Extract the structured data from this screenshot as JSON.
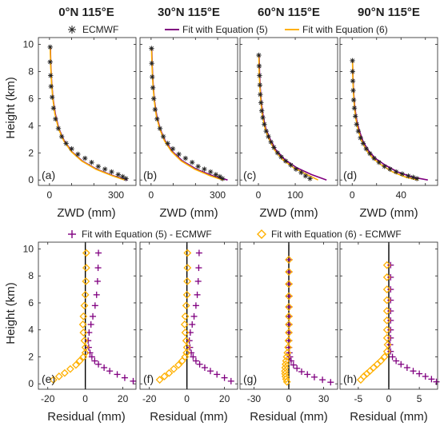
{
  "colors": {
    "ecmwf": "#222222",
    "eq5": "#800080",
    "eq6": "#FFB000",
    "zero_line": "#000000"
  },
  "legend_top": {
    "ecmwf": "ECMWF",
    "fit5": "Fit with Equation (5)",
    "fit6": "Fit with Equation (6)"
  },
  "legend_bottom": {
    "res5": "Fit with Equation (5) - ECMWF",
    "res6": "Fit with Equation (6) - ECMWF"
  },
  "chart_data": [
    {
      "id": "a",
      "type": "line",
      "title": "0°N 115°E",
      "panel_label": "(a)",
      "xlabel": "ZWD (mm)",
      "ylabel": "Height (km)",
      "xlim": [
        -50,
        390
      ],
      "xticks": [
        0,
        100,
        200,
        300
      ],
      "xticklabels": [
        "0",
        "",
        "",
        "300"
      ],
      "ylim": [
        -0.4,
        10.5
      ],
      "yticks": [
        0,
        2,
        4,
        6,
        8,
        10
      ],
      "ecmwf": {
        "x": [
          3,
          3,
          5,
          7,
          12,
          18,
          27,
          40,
          55,
          75,
          100,
          128,
          160,
          190,
          220,
          250,
          280,
          310,
          330,
          345
        ],
        "y": [
          9.8,
          8.7,
          7.7,
          6.9,
          6.1,
          5.3,
          4.5,
          3.8,
          3.2,
          2.7,
          2.3,
          1.9,
          1.6,
          1.3,
          1.0,
          0.8,
          0.6,
          0.4,
          0.25,
          0.1
        ]
      },
      "series": [
        {
          "key": "eq5",
          "x": [
            4,
            6,
            10,
            16,
            26,
            42,
            66,
            100,
            148,
            212,
            290,
            350
          ],
          "y": [
            9.8,
            8.5,
            7.2,
            6.0,
            4.9,
            3.8,
            2.9,
            2.1,
            1.4,
            0.8,
            0.3,
            0.0
          ]
        },
        {
          "key": "eq6",
          "x": [
            3,
            5,
            9,
            15,
            24,
            40,
            64,
            98,
            145,
            208,
            285,
            340
          ],
          "y": [
            9.8,
            8.5,
            7.2,
            6.0,
            4.9,
            3.8,
            2.9,
            2.1,
            1.4,
            0.8,
            0.3,
            0.0
          ]
        }
      ]
    },
    {
      "id": "b",
      "type": "line",
      "title": "30°N 115°E",
      "panel_label": "(b)",
      "xlabel": "ZWD (mm)",
      "ylabel": "",
      "xlim": [
        -50,
        390
      ],
      "xticks": [
        0,
        100,
        200,
        300
      ],
      "xticklabels": [
        "0",
        "",
        "",
        "300"
      ],
      "ylim": [
        -0.4,
        10.5
      ],
      "yticks": [
        0,
        2,
        4,
        6,
        8,
        10
      ],
      "ecmwf": {
        "x": [
          2,
          3,
          5,
          8,
          12,
          18,
          27,
          40,
          55,
          75,
          98,
          125,
          155,
          185,
          212,
          240,
          268,
          292,
          310,
          322
        ],
        "y": [
          9.7,
          8.6,
          7.6,
          6.8,
          6.0,
          5.2,
          4.5,
          3.8,
          3.2,
          2.7,
          2.3,
          1.9,
          1.6,
          1.3,
          1.0,
          0.8,
          0.6,
          0.4,
          0.25,
          0.1
        ]
      },
      "series": [
        {
          "key": "eq5",
          "x": [
            3,
            5,
            9,
            15,
            25,
            40,
            63,
            96,
            142,
            204,
            280,
            345
          ],
          "y": [
            9.7,
            8.4,
            7.1,
            5.9,
            4.8,
            3.8,
            2.9,
            2.1,
            1.4,
            0.8,
            0.3,
            0.0
          ]
        },
        {
          "key": "eq6",
          "x": [
            2,
            4,
            8,
            14,
            23,
            38,
            60,
            92,
            136,
            196,
            268,
            325
          ],
          "y": [
            9.7,
            8.4,
            7.1,
            5.9,
            4.8,
            3.8,
            2.9,
            2.1,
            1.4,
            0.8,
            0.3,
            0.0
          ]
        }
      ]
    },
    {
      "id": "c",
      "type": "line",
      "title": "60°N 115°E",
      "panel_label": "(c)",
      "xlabel": "ZWD (mm)",
      "ylabel": "",
      "xlim": [
        -50,
        215
      ],
      "xticks": [
        0,
        100
      ],
      "xticklabels": [
        "0",
        "100"
      ],
      "ylim": [
        -0.4,
        10.5
      ],
      "yticks": [
        0,
        2,
        4,
        6,
        8,
        10
      ],
      "ecmwf": {
        "x": [
          1,
          2,
          3,
          4,
          5,
          7,
          9,
          12,
          16,
          21,
          27,
          34,
          42,
          52,
          62,
          74,
          88,
          102,
          116,
          128,
          140
        ],
        "y": [
          9.2,
          8.4,
          7.7,
          7.0,
          6.3,
          5.7,
          5.1,
          4.6,
          4.1,
          3.6,
          3.2,
          2.8,
          2.4,
          2.0,
          1.7,
          1.4,
          1.1,
          0.8,
          0.55,
          0.3,
          0.1
        ]
      },
      "series": [
        {
          "key": "eq5",
          "x": [
            2,
            3,
            5,
            8,
            13,
            20,
            32,
            48,
            72,
            104,
            144,
            185
          ],
          "y": [
            9.2,
            8.0,
            6.8,
            5.7,
            4.7,
            3.8,
            3.0,
            2.2,
            1.5,
            0.9,
            0.4,
            0.0
          ]
        },
        {
          "key": "eq6",
          "x": [
            1,
            2,
            4,
            7,
            11,
            18,
            29,
            44,
            66,
            96,
            132,
            162
          ],
          "y": [
            9.2,
            8.0,
            6.8,
            5.7,
            4.7,
            3.8,
            3.0,
            2.2,
            1.5,
            0.9,
            0.4,
            0.0
          ]
        }
      ]
    },
    {
      "id": "d",
      "type": "line",
      "title": "90°N 115°E",
      "panel_label": "(d)",
      "xlabel": "ZWD (mm)",
      "ylabel": "",
      "xlim": [
        -10,
        70
      ],
      "xticks": [
        0,
        20,
        40,
        60
      ],
      "xticklabels": [
        "0",
        "",
        "40",
        ""
      ],
      "ylim": [
        -0.4,
        10.5
      ],
      "yticks": [
        0,
        2,
        4,
        6,
        8,
        10
      ],
      "ecmwf": {
        "x": [
          0.2,
          0.3,
          0.5,
          0.8,
          1.2,
          1.8,
          2.6,
          3.6,
          5,
          6.8,
          9,
          11.5,
          14.5,
          18,
          22,
          26.5,
          31,
          36,
          41,
          46,
          50,
          53
        ],
        "y": [
          8.8,
          8.0,
          7.3,
          6.6,
          5.9,
          5.3,
          4.7,
          4.1,
          3.6,
          3.1,
          2.7,
          2.3,
          1.95,
          1.6,
          1.3,
          1.0,
          0.8,
          0.6,
          0.45,
          0.3,
          0.2,
          0.1
        ]
      },
      "series": [
        {
          "key": "eq5",
          "x": [
            0.3,
            0.6,
            1.2,
            2.1,
            3.5,
            5.6,
            8.7,
            13,
            19,
            27,
            37,
            50,
            62
          ],
          "y": [
            8.8,
            7.6,
            6.4,
            5.4,
            4.5,
            3.7,
            2.9,
            2.2,
            1.6,
            1.1,
            0.6,
            0.2,
            0.0
          ]
        },
        {
          "key": "eq6",
          "x": [
            0.2,
            0.5,
            1.0,
            1.8,
            3.0,
            4.9,
            7.7,
            11.5,
            17,
            24,
            33,
            44,
            54
          ],
          "y": [
            8.8,
            7.6,
            6.4,
            5.4,
            4.5,
            3.7,
            2.9,
            2.2,
            1.6,
            1.1,
            0.6,
            0.2,
            0.0
          ]
        }
      ]
    },
    {
      "id": "e",
      "type": "scatter",
      "panel_label": "(e)",
      "xlabel": "Residual (mm)",
      "ylabel": "Height (km)",
      "xlim": [
        -25,
        27
      ],
      "xticks": [
        -20,
        0,
        20
      ],
      "xticklabels": [
        "-20",
        "0",
        "20"
      ],
      "ylim": [
        -0.4,
        10.5
      ],
      "yticks": [
        0,
        2,
        4,
        6,
        8,
        10
      ],
      "series": [
        {
          "key": "eq5",
          "marker": "plus",
          "x": [
            7,
            6.8,
            6.5,
            6.0,
            5.2,
            4.0,
            3.0,
            2.0,
            1.5,
            1.8,
            2.5,
            3.5,
            5.0,
            7.0,
            10.0,
            13.0,
            17.0,
            21.0,
            25.5
          ],
          "y": [
            9.7,
            8.6,
            7.6,
            6.6,
            5.8,
            5.0,
            4.4,
            3.8,
            3.2,
            2.7,
            2.3,
            2.0,
            1.7,
            1.45,
            1.2,
            0.95,
            0.7,
            0.45,
            0.2
          ]
        },
        {
          "key": "eq6",
          "marker": "diamond",
          "x": [
            0.5,
            0.5,
            0.3,
            0,
            -0.5,
            -1,
            -1.3,
            -1,
            -0.5,
            0,
            0,
            -1,
            -3,
            -5,
            -8,
            -11,
            -14,
            -17
          ],
          "y": [
            9.7,
            8.6,
            7.6,
            6.6,
            5.8,
            5.0,
            4.4,
            3.8,
            3.2,
            2.7,
            2.3,
            2.0,
            1.7,
            1.4,
            1.1,
            0.8,
            0.55,
            0.3
          ]
        }
      ]
    },
    {
      "id": "f",
      "type": "scatter",
      "panel_label": "(f)",
      "xlabel": "Residual (mm)",
      "ylabel": "",
      "xlim": [
        -25,
        27
      ],
      "xticks": [
        -20,
        0,
        20
      ],
      "xticklabels": [
        "-20",
        "0",
        "20"
      ],
      "ylim": [
        -0.4,
        10.5
      ],
      "yticks": [
        0,
        2,
        4,
        6,
        8,
        10
      ],
      "series": [
        {
          "key": "eq5",
          "marker": "plus",
          "x": [
            6.5,
            6.3,
            6.0,
            5.5,
            4.8,
            3.8,
            2.8,
            1.8,
            1.3,
            1.6,
            2.3,
            3.3,
            4.8,
            6.8,
            9.5,
            12.5,
            16.0,
            20.0,
            23.5
          ],
          "y": [
            9.7,
            8.6,
            7.6,
            6.6,
            5.8,
            5.0,
            4.4,
            3.8,
            3.2,
            2.7,
            2.3,
            2.0,
            1.7,
            1.45,
            1.2,
            0.95,
            0.7,
            0.45,
            0.2
          ]
        },
        {
          "key": "eq6",
          "marker": "diamond",
          "x": [
            0.3,
            0.3,
            0.2,
            0,
            -0.4,
            -0.9,
            -1.2,
            -0.9,
            -0.4,
            0,
            -0.2,
            -1,
            -2.5,
            -4.5,
            -7,
            -9.5,
            -12,
            -14.5
          ],
          "y": [
            9.7,
            8.6,
            7.6,
            6.6,
            5.8,
            5.0,
            4.4,
            3.8,
            3.2,
            2.7,
            2.3,
            2.0,
            1.7,
            1.4,
            1.1,
            0.8,
            0.55,
            0.3
          ]
        }
      ]
    },
    {
      "id": "g",
      "type": "scatter",
      "panel_label": "(g)",
      "xlabel": "Residual (mm)",
      "ylabel": "",
      "xlim": [
        -42,
        42
      ],
      "xticks": [
        -30,
        0,
        30
      ],
      "xticklabels": [
        "-30",
        "0",
        "30"
      ],
      "ylim": [
        -0.4,
        10.5
      ],
      "yticks": [
        0,
        2,
        4,
        6,
        8,
        10
      ],
      "series": [
        {
          "key": "eq5",
          "marker": "plus",
          "x": [
            0.5,
            0.5,
            0.5,
            0.5,
            0.5,
            0.5,
            0.5,
            0.4,
            0.3,
            0.2,
            0.5,
            1.0,
            2.0,
            4.0,
            7.0,
            11.0,
            16.0,
            22.0,
            29.0,
            36.0
          ],
          "y": [
            9.2,
            8.3,
            7.4,
            6.5,
            5.7,
            5.0,
            4.4,
            3.8,
            3.2,
            2.7,
            2.3,
            2.0,
            1.7,
            1.4,
            1.15,
            0.9,
            0.7,
            0.5,
            0.3,
            0.12
          ]
        },
        {
          "key": "eq6",
          "marker": "diamond",
          "x": [
            0,
            0,
            0,
            0,
            0,
            0,
            0,
            0,
            -0.3,
            -0.6,
            -1.2,
            -1.8,
            -2.4,
            -2.8,
            -3.1,
            -3.3,
            -3.2,
            -2.9,
            -2.4,
            -1.6
          ],
          "y": [
            9.2,
            8.3,
            7.4,
            6.5,
            5.7,
            5.0,
            4.4,
            3.8,
            3.2,
            2.7,
            2.3,
            2.0,
            1.7,
            1.45,
            1.2,
            0.95,
            0.75,
            0.55,
            0.35,
            0.15
          ]
        }
      ]
    },
    {
      "id": "h",
      "type": "scatter",
      "panel_label": "(h)",
      "xlabel": "Residual (mm)",
      "ylabel": "",
      "xlim": [
        -8,
        8
      ],
      "xticks": [
        -5,
        0,
        5
      ],
      "xticklabels": [
        "-5",
        "0",
        "5"
      ],
      "ylim": [
        -0.4,
        10.5
      ],
      "yticks": [
        0,
        2,
        4,
        6,
        8,
        10
      ],
      "series": [
        {
          "key": "eq5",
          "marker": "plus",
          "x": [
            0.3,
            0.3,
            0.3,
            0.3,
            0.3,
            0.3,
            0.3,
            0.3,
            0.2,
            0.3,
            0.6,
            1.2,
            2.0,
            3.0,
            4.0,
            5.0,
            6.0,
            7.0,
            7.8
          ],
          "y": [
            8.8,
            7.9,
            7.0,
            6.2,
            5.4,
            4.7,
            4.0,
            3.4,
            2.9,
            2.4,
            2.0,
            1.7,
            1.45,
            1.2,
            0.95,
            0.75,
            0.55,
            0.35,
            0.15
          ]
        },
        {
          "key": "eq6",
          "marker": "diamond",
          "x": [
            -0.3,
            -0.3,
            -0.3,
            -0.3,
            -0.3,
            -0.3,
            -0.3,
            -0.3,
            -0.2,
            -0.3,
            -0.7,
            -1.3,
            -1.9,
            -2.5,
            -3.1,
            -3.6,
            -4.1,
            -4.6
          ],
          "y": [
            8.8,
            7.9,
            7.0,
            6.2,
            5.4,
            4.7,
            4.0,
            3.4,
            2.9,
            2.4,
            2.0,
            1.7,
            1.45,
            1.2,
            0.95,
            0.75,
            0.55,
            0.3
          ]
        }
      ]
    }
  ]
}
